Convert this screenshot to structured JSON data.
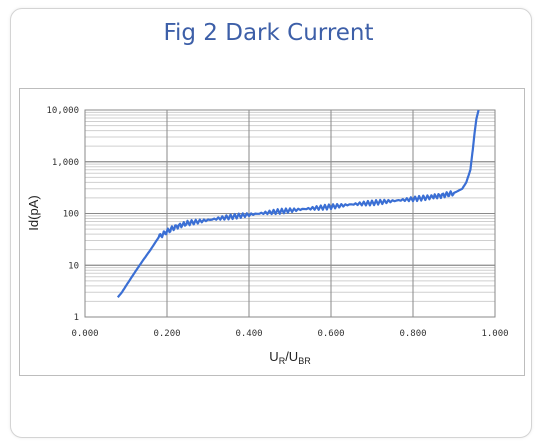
{
  "figure": {
    "title": "Fig 2  Dark Current"
  },
  "chart_data": {
    "type": "line",
    "title": "Fig 2  Dark Current",
    "xlabel": "U_R/U_BR",
    "xlabel_main": "U",
    "xlabel_sub1": "R",
    "xlabel_mid": "/U",
    "xlabel_sub2": "BR",
    "ylabel": "Id(pA)",
    "xlim": [
      0.0,
      1.0
    ],
    "ylim": [
      1,
      10000
    ],
    "yscale": "log",
    "grid": true,
    "x_ticks": [
      "0.000",
      "0.200",
      "0.400",
      "0.600",
      "0.800",
      "1.000"
    ],
    "y_ticks": [
      "1",
      "10",
      "100",
      "1,000",
      "10,000"
    ],
    "series": [
      {
        "color": "#3b6fd4",
        "x": [
          0.08,
          0.09,
          0.1,
          0.12,
          0.14,
          0.16,
          0.18,
          0.2,
          0.22,
          0.25,
          0.3,
          0.35,
          0.4,
          0.45,
          0.5,
          0.55,
          0.6,
          0.65,
          0.7,
          0.75,
          0.8,
          0.85,
          0.88,
          0.9,
          0.92,
          0.93,
          0.94,
          0.945,
          0.95,
          0.955,
          0.96
        ],
        "y": [
          2.4,
          3,
          4,
          7,
          12,
          20,
          35,
          45,
          55,
          65,
          75,
          85,
          95,
          105,
          115,
          125,
          135,
          150,
          160,
          175,
          190,
          210,
          230,
          250,
          300,
          400,
          700,
          1500,
          3500,
          7000,
          10000
        ]
      }
    ]
  }
}
